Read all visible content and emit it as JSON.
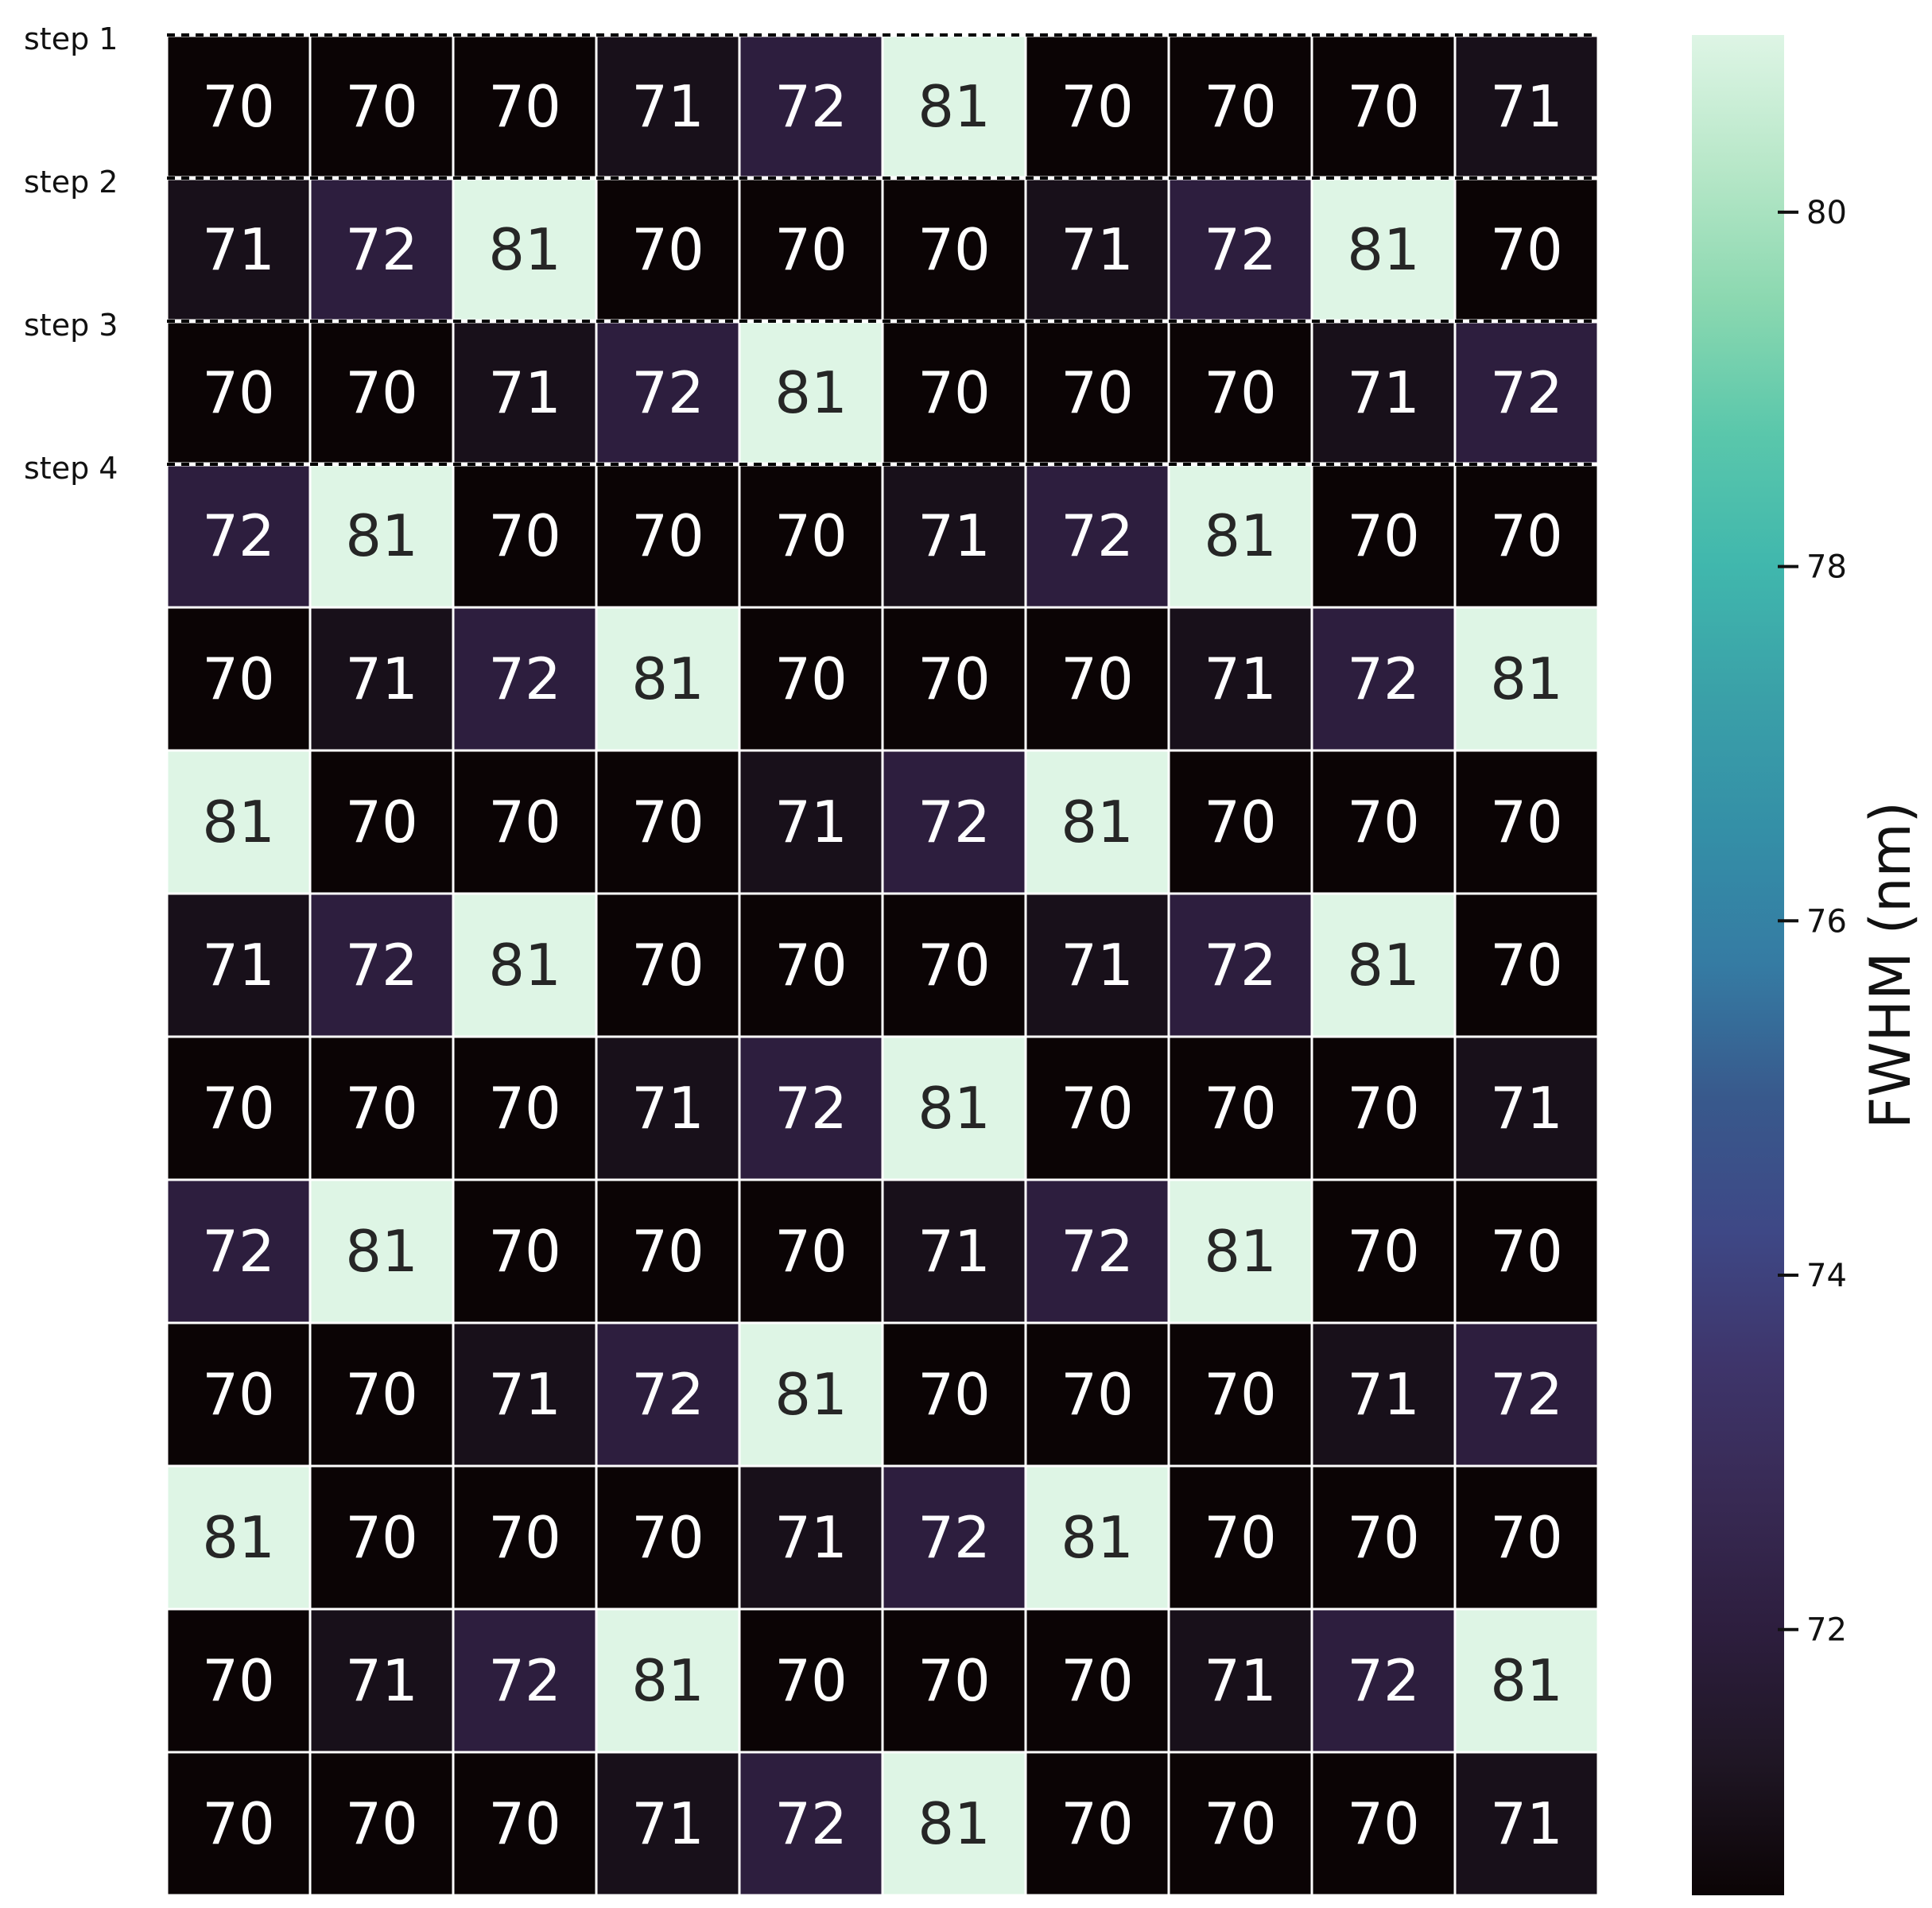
{
  "chart_data": {
    "type": "heatmap",
    "rows": 13,
    "cols": 10,
    "values": [
      [
        70,
        70,
        70,
        71,
        72,
        81,
        70,
        70,
        70,
        71
      ],
      [
        71,
        72,
        81,
        70,
        70,
        70,
        71,
        72,
        81,
        70
      ],
      [
        70,
        70,
        71,
        72,
        81,
        70,
        70,
        70,
        71,
        72
      ],
      [
        72,
        81,
        70,
        70,
        70,
        71,
        72,
        81,
        70,
        70
      ],
      [
        70,
        71,
        72,
        81,
        70,
        70,
        70,
        71,
        72,
        81
      ],
      [
        81,
        70,
        70,
        70,
        71,
        72,
        81,
        70,
        70,
        70
      ],
      [
        71,
        72,
        81,
        70,
        70,
        70,
        71,
        72,
        81,
        70
      ],
      [
        70,
        70,
        70,
        71,
        72,
        81,
        70,
        70,
        70,
        71
      ],
      [
        72,
        81,
        70,
        70,
        70,
        71,
        72,
        81,
        70,
        70
      ],
      [
        70,
        70,
        71,
        72,
        81,
        70,
        70,
        70,
        71,
        72
      ],
      [
        81,
        70,
        70,
        70,
        71,
        72,
        81,
        70,
        70,
        70
      ],
      [
        70,
        71,
        72,
        81,
        70,
        70,
        70,
        71,
        72,
        81
      ],
      [
        70,
        70,
        70,
        71,
        72,
        81,
        70,
        70,
        70,
        71
      ]
    ],
    "row_labels": [
      "step 1",
      "step 2",
      "step 3",
      "step 4"
    ],
    "dashed_separator_rows": 4,
    "colorbar": {
      "label": "FWHM (nm)",
      "range": [
        70.5,
        81
      ],
      "ticks": [
        72,
        74,
        76,
        78,
        80
      ],
      "colormap": "mako",
      "colormap_stops": [
        "#0b0405",
        "#1f1624",
        "#2d1e3e",
        "#382a54",
        "#3e356b",
        "#3e4886",
        "#38598c",
        "#357ba3",
        "#348fa7",
        "#3aa0a8",
        "#40b7ad",
        "#5ac7ab",
        "#8bd8b0",
        "#b7e7c8",
        "#def5e5"
      ]
    },
    "text_colors": {
      "on_dark": "#ffffff",
      "on_light": "#262626"
    },
    "grid_line_color": "#ffffff"
  }
}
